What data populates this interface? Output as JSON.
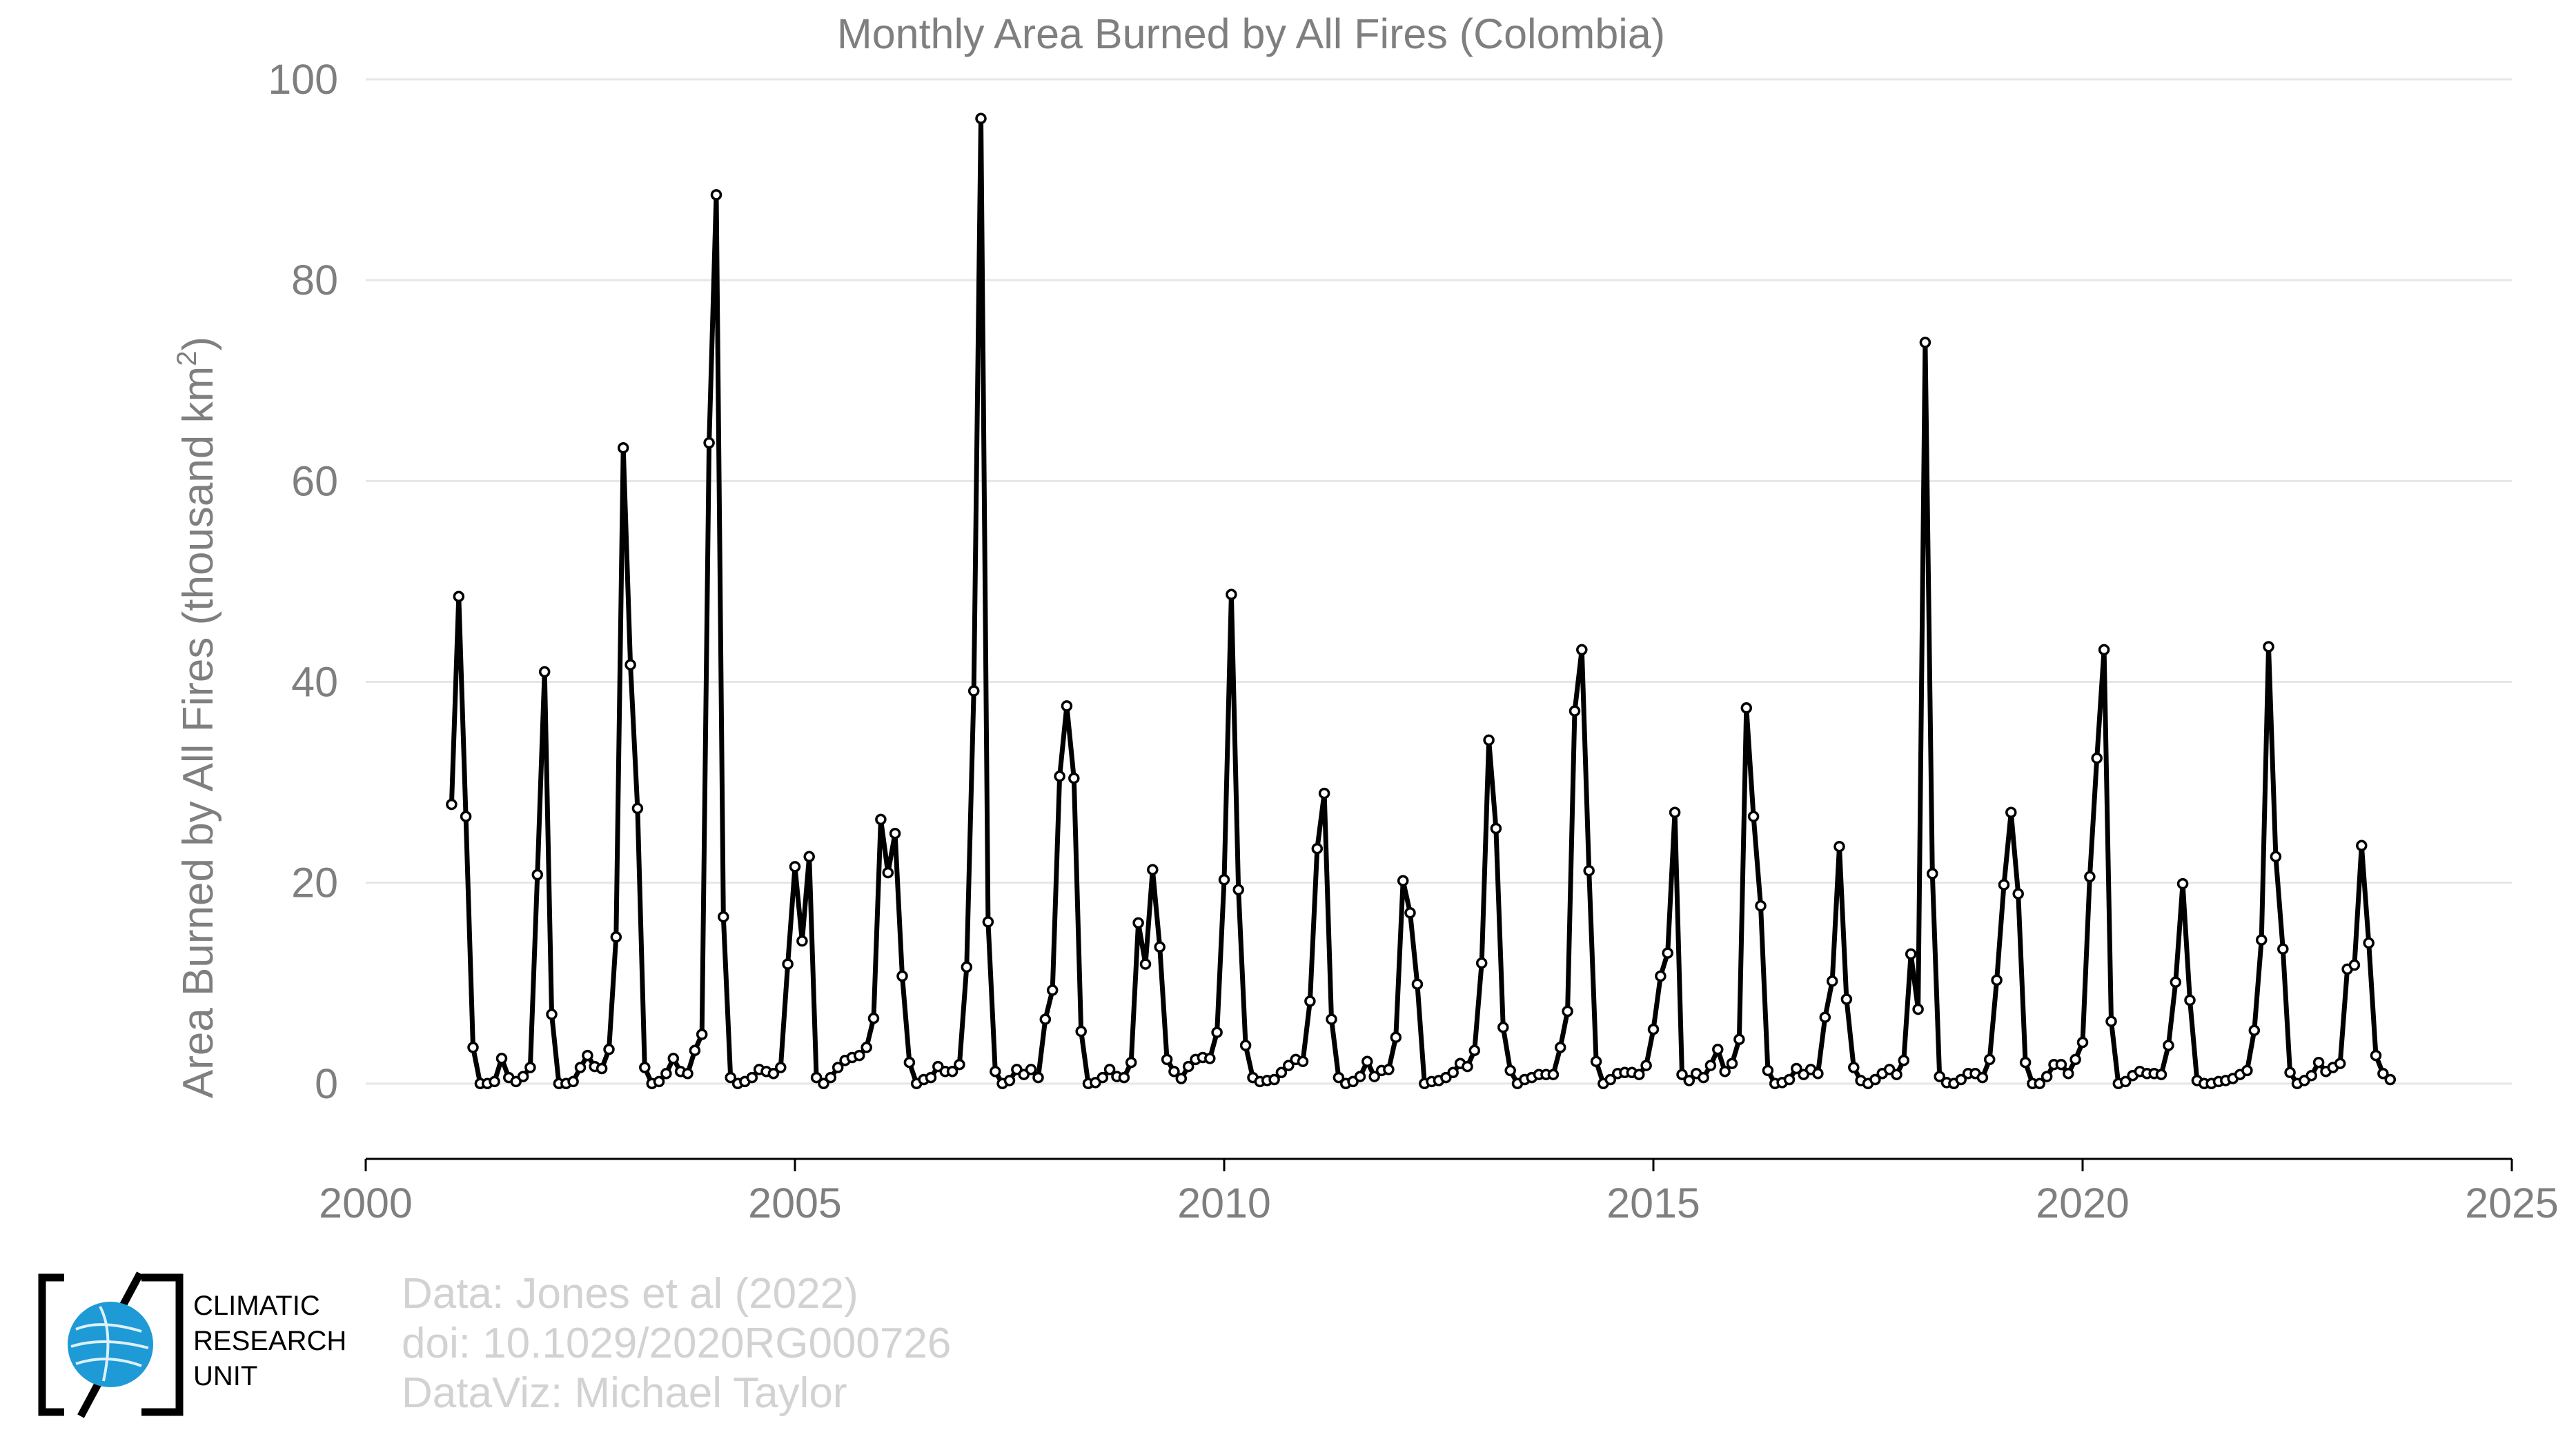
{
  "chart_data": {
    "type": "line",
    "title": "Monthly Area Burned by All Fires (Colombia)",
    "xlabel": "",
    "ylabel": "Area Burned by All Fires (thousand km",
    "ylabel_sup": "2",
    "ylabel_close": ")",
    "xlim": [
      2000,
      2025
    ],
    "ylim": [
      -7.5,
      100
    ],
    "x_ticks": [
      2000,
      2005,
      2010,
      2015,
      2020,
      2025
    ],
    "y_ticks": [
      0,
      20,
      40,
      60,
      80,
      100
    ],
    "grid": "horizontal",
    "start_month": "2001-01",
    "series": [
      {
        "values": [
          27.8,
          48.5,
          26.6,
          3.6,
          0.0,
          0.0,
          0.2,
          2.5,
          0.6,
          0.2,
          0.7,
          1.6,
          20.8,
          41.0,
          6.9,
          0.0,
          0.0,
          0.2,
          1.6,
          2.8,
          1.7,
          1.5,
          3.4,
          14.6,
          63.3,
          41.7,
          27.4,
          1.6,
          0.0,
          0.2,
          1.0,
          2.5,
          1.2,
          1.0,
          3.3,
          4.9,
          63.8,
          88.5,
          16.6,
          0.6,
          0.0,
          0.2,
          0.6,
          1.4,
          1.2,
          1.0,
          1.6,
          11.9,
          21.6,
          14.2,
          22.6,
          0.6,
          0.0,
          0.6,
          1.6,
          2.3,
          2.6,
          2.8,
          3.6,
          6.5,
          26.3,
          21.0,
          24.9,
          10.7,
          2.1,
          0.0,
          0.4,
          0.6,
          1.7,
          1.2,
          1.2,
          1.9,
          11.6,
          39.1,
          96.1,
          16.1,
          1.2,
          0.0,
          0.3,
          1.4,
          0.9,
          1.4,
          0.6,
          6.4,
          9.3,
          30.6,
          37.6,
          30.4,
          5.2,
          0.0,
          0.1,
          0.6,
          1.4,
          0.7,
          0.6,
          2.1,
          16.0,
          11.9,
          21.3,
          13.6,
          2.4,
          1.2,
          0.5,
          1.7,
          2.4,
          2.6,
          2.5,
          5.1,
          20.3,
          48.7,
          19.3,
          3.8,
          0.6,
          0.2,
          0.3,
          0.4,
          1.1,
          1.8,
          2.4,
          2.2,
          8.2,
          23.4,
          28.9,
          6.4,
          0.6,
          0.0,
          0.2,
          0.7,
          2.2,
          0.7,
          1.3,
          1.4,
          4.6,
          20.2,
          17.0,
          9.9,
          0.0,
          0.2,
          0.3,
          0.6,
          1.1,
          2.0,
          1.7,
          3.3,
          12.0,
          34.2,
          25.4,
          5.6,
          1.3,
          0.0,
          0.4,
          0.6,
          0.9,
          0.9,
          0.9,
          3.6,
          7.2,
          37.1,
          43.2,
          21.2,
          2.2,
          0.0,
          0.4,
          1.0,
          1.1,
          1.1,
          0.9,
          1.8,
          5.4,
          10.7,
          13.0,
          27.0,
          0.9,
          0.3,
          1.0,
          0.6,
          1.8,
          3.4,
          1.2,
          2.0,
          4.4,
          37.4,
          26.6,
          17.7,
          1.3,
          0.0,
          0.1,
          0.4,
          1.5,
          0.9,
          1.4,
          1.0,
          6.6,
          10.2,
          23.6,
          8.4,
          1.6,
          0.3,
          0.0,
          0.4,
          1.0,
          1.4,
          0.9,
          2.3,
          12.9,
          7.4,
          73.8,
          20.9,
          0.7,
          0.1,
          0.0,
          0.4,
          1.0,
          1.0,
          0.6,
          2.4,
          10.3,
          19.8,
          27.0,
          18.9,
          2.1,
          0.0,
          0.0,
          0.7,
          1.9,
          1.9,
          1.0,
          2.4,
          4.1,
          20.6,
          32.4,
          43.2,
          6.2,
          0.0,
          0.2,
          0.8,
          1.2,
          1.0,
          1.0,
          0.9,
          3.8,
          10.1,
          19.9,
          8.3,
          0.3,
          0.0,
          0.0,
          0.2,
          0.3,
          0.5,
          0.9,
          1.3,
          5.3,
          14.3,
          43.5,
          22.6,
          13.4,
          1.1,
          0.0,
          0.3,
          0.8,
          2.1,
          1.2,
          1.6,
          2.0,
          11.4,
          11.8,
          23.7,
          14.0,
          2.8,
          1.0,
          0.4
        ]
      }
    ]
  },
  "credits": {
    "line1": "Data: Jones et al (2022)",
    "line2": "doi: 10.1029/2020RG000726",
    "line3": "DataViz: Michael Taylor"
  },
  "logo": {
    "line1": "CLIMATIC",
    "line2": "RESEARCH",
    "line3": "UNIT",
    "color": "#1e9ad6"
  },
  "colors": {
    "line": "#000000",
    "grid": "#e6e6e6",
    "axis_text": "#7f7f7f",
    "credits_text": "#d2d2d2"
  }
}
